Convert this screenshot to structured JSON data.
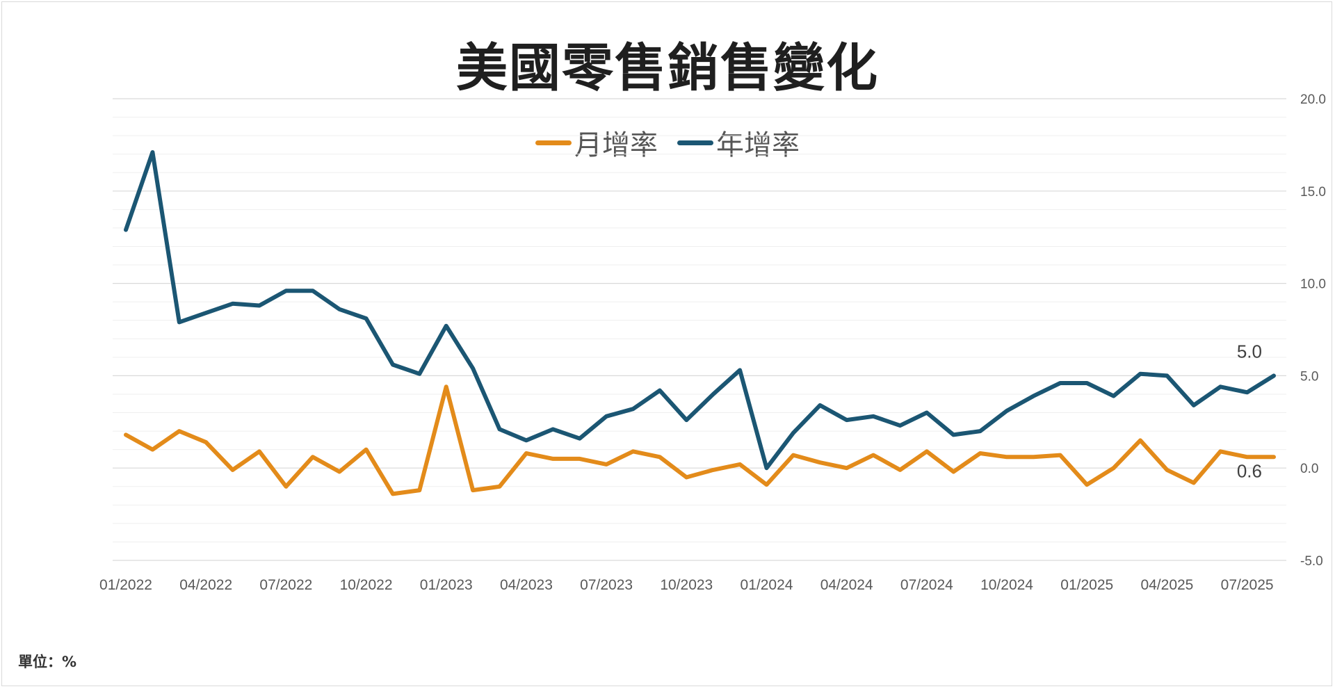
{
  "title": "美國零售銷售變化",
  "unit_note": "單位：%",
  "colors": {
    "mom": "#e38b1a",
    "yoy": "#1b5673",
    "grid_major": "#d9d9d9",
    "grid_minor": "#efefef"
  },
  "chart_data": {
    "type": "line",
    "title": "美國零售銷售變化",
    "legend_placement": "top-center",
    "y_axis_side": "right",
    "ylim": [
      -5.0,
      20.0
    ],
    "y_ticks": [
      "20.0",
      "15.0",
      "10.0",
      "5.0",
      "0.0",
      "-5.0"
    ],
    "x_tick_labels": [
      "01/2022",
      "04/2022",
      "07/2022",
      "10/2022",
      "01/2023",
      "04/2023",
      "07/2023",
      "10/2023",
      "01/2024",
      "04/2024",
      "07/2024",
      "10/2024",
      "01/2025",
      "04/2025",
      "07/2025"
    ],
    "x": [
      "01/2022",
      "02/2022",
      "03/2022",
      "04/2022",
      "05/2022",
      "06/2022",
      "07/2022",
      "08/2022",
      "09/2022",
      "10/2022",
      "11/2022",
      "12/2022",
      "01/2023",
      "02/2023",
      "03/2023",
      "04/2023",
      "05/2023",
      "06/2023",
      "07/2023",
      "08/2023",
      "09/2023",
      "10/2023",
      "11/2023",
      "12/2023",
      "01/2024",
      "02/2024",
      "03/2024",
      "04/2024",
      "05/2024",
      "06/2024",
      "07/2024",
      "08/2024",
      "09/2024",
      "10/2024",
      "11/2024",
      "12/2024",
      "01/2025",
      "02/2025",
      "03/2025",
      "04/2025",
      "05/2025",
      "06/2025",
      "07/2025",
      "08/2025"
    ],
    "series": [
      {
        "name": "月增率",
        "color": "#e38b1a",
        "end_label": "0.6",
        "values": [
          1.8,
          1.0,
          2.0,
          1.4,
          -0.1,
          0.9,
          -1.0,
          0.6,
          -0.2,
          1.0,
          -1.4,
          -1.2,
          4.4,
          -1.2,
          -1.0,
          0.8,
          0.5,
          0.5,
          0.2,
          0.9,
          0.6,
          -0.5,
          -0.1,
          0.2,
          -0.9,
          0.7,
          0.3,
          0.0,
          0.7,
          -0.1,
          0.9,
          -0.2,
          0.8,
          0.6,
          0.6,
          0.7,
          -0.9,
          0.0,
          1.5,
          -0.1,
          -0.8,
          0.9,
          0.6,
          0.6
        ]
      },
      {
        "name": "年增率",
        "color": "#1b5673",
        "end_label": "5.0",
        "values": [
          12.9,
          17.1,
          7.9,
          8.4,
          8.9,
          8.8,
          9.6,
          9.6,
          8.6,
          8.1,
          5.6,
          5.1,
          7.7,
          5.4,
          2.1,
          1.5,
          2.1,
          1.6,
          2.8,
          3.2,
          4.2,
          2.6,
          4.0,
          5.3,
          0.0,
          1.9,
          3.4,
          2.6,
          2.8,
          2.3,
          3.0,
          1.8,
          2.0,
          3.1,
          3.9,
          4.6,
          4.6,
          3.9,
          5.1,
          5.0,
          3.4,
          4.4,
          4.1,
          5.0
        ]
      }
    ]
  }
}
